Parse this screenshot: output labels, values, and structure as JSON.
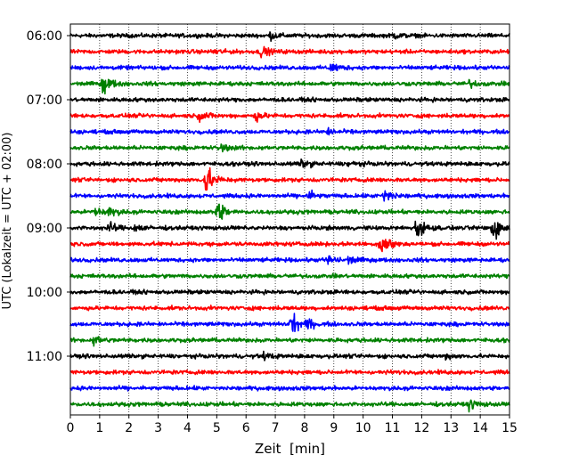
{
  "chart_data": {
    "type": "line",
    "title": "",
    "xlabel": "Zeit  [min]",
    "ylabel": "UTC (Lokalzeit = UTC + 02:00)",
    "xlim": [
      0,
      15
    ],
    "x_ticks": [
      "0",
      "1",
      "2",
      "3",
      "4",
      "5",
      "6",
      "7",
      "8",
      "9",
      "10",
      "11",
      "12",
      "13",
      "14",
      "15"
    ],
    "y_tick_labels": [
      "06:00",
      "07:00",
      "08:00",
      "09:00",
      "10:00",
      "11:00"
    ],
    "grid": "vertical dotted lines at each minute",
    "trace_interval_min": 15,
    "color_cycle": [
      "#000000",
      "#ff0000",
      "#0000ff",
      "#008000"
    ],
    "series": [
      {
        "start": "06:00",
        "events": [
          [
            6.8,
            0.3
          ],
          [
            11.0,
            0.25
          ]
        ]
      },
      {
        "start": "06:15",
        "events": [
          [
            6.5,
            0.45
          ],
          [
            4.9,
            0.2
          ]
        ]
      },
      {
        "start": "06:30",
        "events": [
          [
            8.9,
            0.45
          ]
        ]
      },
      {
        "start": "06:45",
        "events": [
          [
            1.1,
            0.9
          ],
          [
            13.6,
            0.3
          ]
        ]
      },
      {
        "start": "07:00",
        "events": []
      },
      {
        "start": "07:15",
        "events": [
          [
            4.4,
            0.45
          ],
          [
            6.3,
            0.4
          ]
        ]
      },
      {
        "start": "07:30",
        "events": [
          [
            8.7,
            0.35
          ]
        ]
      },
      {
        "start": "07:45",
        "events": [
          [
            5.1,
            0.4
          ]
        ]
      },
      {
        "start": "08:00",
        "events": [
          [
            7.9,
            0.35
          ],
          [
            9.5,
            0.2
          ]
        ]
      },
      {
        "start": "08:15",
        "events": [
          [
            4.6,
            1.6
          ]
        ]
      },
      {
        "start": "08:30",
        "events": [
          [
            8.1,
            0.45
          ],
          [
            10.7,
            0.7
          ]
        ]
      },
      {
        "start": "08:45",
        "events": [
          [
            0.8,
            0.45
          ],
          [
            1.3,
            0.4
          ],
          [
            5.0,
            1.1
          ]
        ]
      },
      {
        "start": "09:00",
        "events": [
          [
            1.3,
            0.45
          ],
          [
            2.2,
            0.3
          ],
          [
            11.8,
            1.1
          ],
          [
            14.4,
            1.5
          ]
        ]
      },
      {
        "start": "09:15",
        "events": [
          [
            10.6,
            1.4
          ]
        ]
      },
      {
        "start": "09:30",
        "events": [
          [
            8.8,
            0.45
          ],
          [
            9.5,
            0.3
          ]
        ]
      },
      {
        "start": "09:45",
        "events": []
      },
      {
        "start": "10:00",
        "events": []
      },
      {
        "start": "10:15",
        "events": []
      },
      {
        "start": "10:30",
        "events": [
          [
            7.5,
            1.2
          ],
          [
            8.1,
            0.35
          ]
        ]
      },
      {
        "start": "10:45",
        "events": [
          [
            0.8,
            0.4
          ]
        ]
      },
      {
        "start": "11:00",
        "events": [
          [
            6.6,
            0.25
          ],
          [
            12.8,
            0.2
          ]
        ]
      },
      {
        "start": "11:15",
        "events": []
      },
      {
        "start": "11:30",
        "events": []
      },
      {
        "start": "11:45",
        "events": [
          [
            13.6,
            0.45
          ]
        ]
      }
    ]
  }
}
